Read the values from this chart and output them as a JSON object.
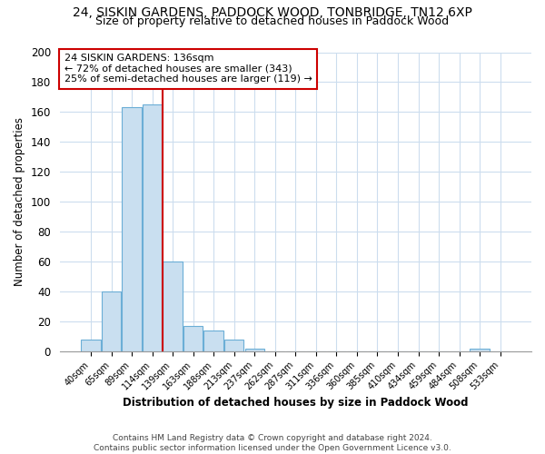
{
  "title1": "24, SISKIN GARDENS, PADDOCK WOOD, TONBRIDGE, TN12 6XP",
  "title2": "Size of property relative to detached houses in Paddock Wood",
  "xlabel": "Distribution of detached houses by size in Paddock Wood",
  "ylabel": "Number of detached properties",
  "bar_labels": [
    "40sqm",
    "65sqm",
    "89sqm",
    "114sqm",
    "139sqm",
    "163sqm",
    "188sqm",
    "213sqm",
    "237sqm",
    "262sqm",
    "287sqm",
    "311sqm",
    "336sqm",
    "360sqm",
    "385sqm",
    "410sqm",
    "434sqm",
    "459sqm",
    "484sqm",
    "508sqm",
    "533sqm"
  ],
  "bar_values": [
    8,
    40,
    163,
    165,
    60,
    17,
    14,
    8,
    2,
    0,
    0,
    0,
    0,
    0,
    0,
    0,
    0,
    0,
    0,
    2,
    0
  ],
  "bar_color": "#c9dff0",
  "bar_edge_color": "#6baed6",
  "vline_color": "#cc0000",
  "annotation_title": "24 SISKIN GARDENS: 136sqm",
  "annotation_line1": "← 72% of detached houses are smaller (343)",
  "annotation_line2": "25% of semi-detached houses are larger (119) →",
  "annotation_box_color": "#ffffff",
  "annotation_box_edge": "#cc0000",
  "ylim": [
    0,
    200
  ],
  "yticks": [
    0,
    20,
    40,
    60,
    80,
    100,
    120,
    140,
    160,
    180,
    200
  ],
  "footer1": "Contains HM Land Registry data © Crown copyright and database right 2024.",
  "footer2": "Contains public sector information licensed under the Open Government Licence v3.0.",
  "bg_color": "#ffffff",
  "grid_color": "#ccddee",
  "title1_fontsize": 10,
  "title2_fontsize": 9
}
